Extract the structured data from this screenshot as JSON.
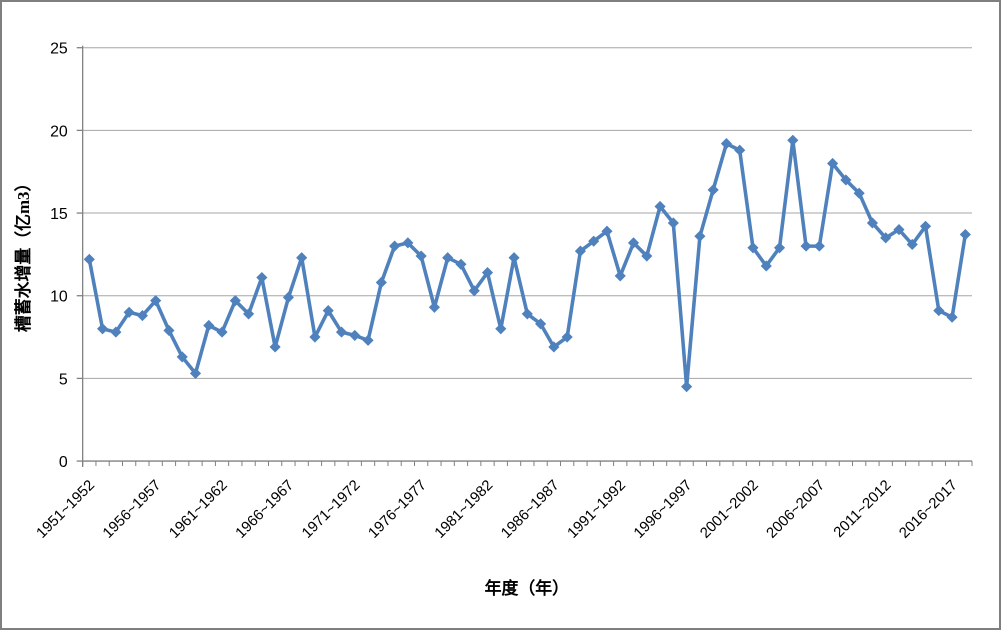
{
  "frame": {
    "background": "#ffffff",
    "border_color": "#7f7f7f"
  },
  "chart_data": {
    "type": "line",
    "title": "",
    "xlabel": "年度（年）",
    "ylabel": "槽蓄水增量（亿m3）",
    "ylim": [
      0,
      25
    ],
    "yticks": [
      0,
      5,
      10,
      15,
      20,
      25
    ],
    "x_label_every": 5,
    "grid": "horizontal",
    "legend_position": "none",
    "line_color": "#4F81BD",
    "marker": "diamond",
    "gridline_color": "#A6A6A6",
    "axis_color": "#808080",
    "categories": [
      "1951~1952",
      "1952~1953",
      "1953~1954",
      "1954~1955",
      "1955~1956",
      "1956~1957",
      "1957~1958",
      "1958~1959",
      "1959~1960",
      "1960~1961",
      "1961~1962",
      "1962~1963",
      "1963~1964",
      "1964~1965",
      "1965~1966",
      "1966~1967",
      "1967~1968",
      "1968~1969",
      "1969~1970",
      "1970~1971",
      "1971~1972",
      "1972~1973",
      "1973~1974",
      "1974~1975",
      "1975~1976",
      "1976~1977",
      "1977~1978",
      "1978~1979",
      "1979~1980",
      "1980~1981",
      "1981~1982",
      "1982~1983",
      "1983~1984",
      "1984~1985",
      "1985~1986",
      "1986~1987",
      "1987~1988",
      "1988~1989",
      "1989~1990",
      "1990~1991",
      "1991~1992",
      "1992~1993",
      "1993~1994",
      "1994~1995",
      "1995~1996",
      "1996~1997",
      "1997~1998",
      "1998~1999",
      "1999~2000",
      "2000~2001",
      "2001~2002",
      "2002~2003",
      "2003~2004",
      "2004~2005",
      "2005~2006",
      "2006~2007",
      "2007~2008",
      "2008~2009",
      "2009~2010",
      "2010~2011",
      "2011~2012",
      "2012~2013",
      "2013~2014",
      "2014~2015",
      "2015~2016",
      "2016~2017",
      "2017~2018"
    ],
    "values": [
      12.2,
      8.0,
      7.8,
      9.0,
      8.8,
      9.7,
      7.9,
      6.3,
      5.3,
      8.2,
      7.8,
      9.7,
      8.9,
      11.1,
      6.9,
      9.9,
      12.3,
      7.5,
      9.1,
      7.8,
      7.6,
      7.3,
      10.8,
      13.0,
      13.2,
      12.4,
      9.3,
      12.3,
      11.9,
      10.3,
      11.4,
      8.0,
      12.3,
      8.9,
      8.3,
      6.9,
      7.5,
      12.7,
      13.3,
      13.9,
      11.2,
      13.2,
      12.4,
      15.4,
      14.4,
      4.5,
      13.6,
      16.4,
      19.2,
      18.8,
      12.9,
      11.8,
      12.9,
      19.4,
      13.0,
      13.0,
      18.0,
      17.0,
      16.2,
      14.4,
      13.5,
      14.0,
      13.1,
      14.2,
      9.1,
      8.7,
      13.7
    ]
  }
}
